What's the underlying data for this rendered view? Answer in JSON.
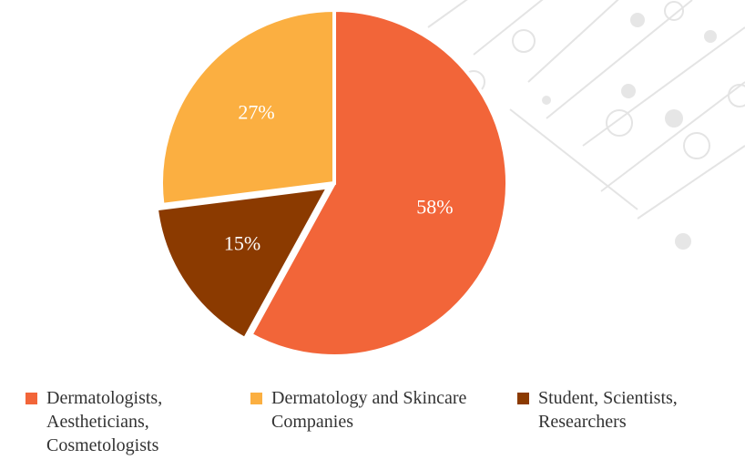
{
  "chart_data": {
    "type": "pie",
    "categories": [
      "Dermatologists, Aestheticians, Cosmetologists",
      "Student, Scientists, Researchers",
      "Dermatology and Skincare Companies"
    ],
    "values": [
      58,
      15,
      27
    ],
    "value_labels": [
      "58%",
      "15%",
      "27%"
    ],
    "colors": [
      "#f26539",
      "#8b3a00",
      "#fbaf41"
    ],
    "legend_order": [
      0,
      2,
      1
    ]
  }
}
